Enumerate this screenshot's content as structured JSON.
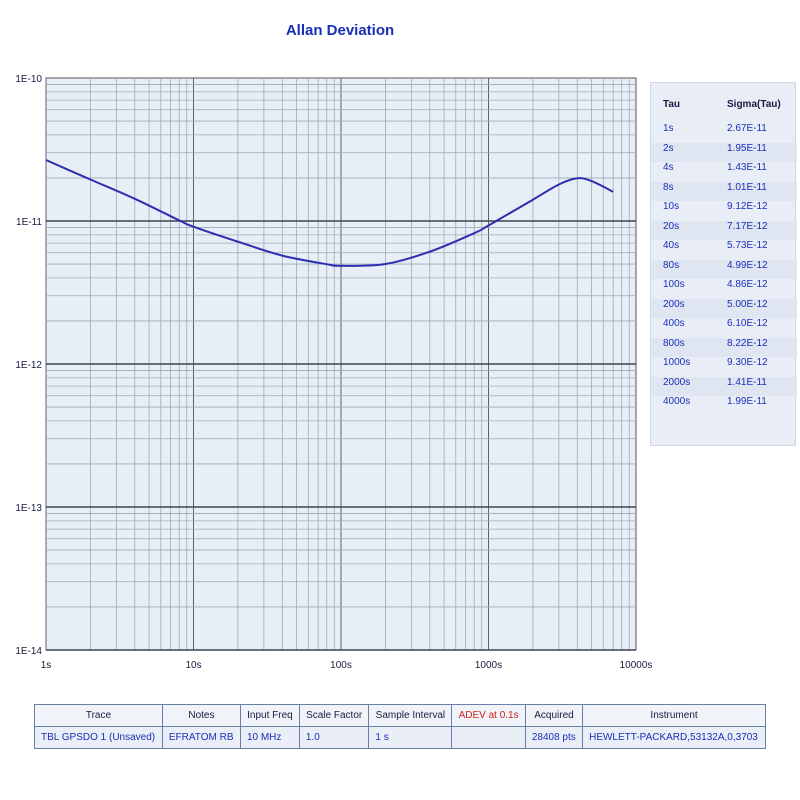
{
  "chart_data": {
    "type": "line",
    "title": "Allan Deviation",
    "x_scale": "log",
    "y_scale": "log",
    "xlim": [
      1,
      10000
    ],
    "ylim": [
      1e-14,
      1e-10
    ],
    "x_tick_labels": [
      "1s",
      "10s",
      "100s",
      "1000s",
      "10000s"
    ],
    "y_tick_labels": [
      "1E-10",
      "1E-11",
      "1E-12",
      "1E-13",
      "1E-14"
    ],
    "grid": true,
    "series": [
      {
        "color": "#2b2fb0",
        "x": [
          1,
          2,
          4,
          8,
          10,
          20,
          40,
          80,
          100,
          200,
          400,
          800,
          1000,
          2000,
          3000,
          4000,
          5000,
          7000
        ],
        "y": [
          2.67e-11,
          1.95e-11,
          1.43e-11,
          1.01e-11,
          9.12e-12,
          7.17e-12,
          5.73e-12,
          4.99e-12,
          4.86e-12,
          5e-12,
          6.1e-12,
          8.22e-12,
          9.3e-12,
          1.41e-11,
          1.8e-11,
          1.99e-11,
          1.9e-11,
          1.6e-11
        ]
      }
    ]
  },
  "tau_table": {
    "headers": [
      "Tau",
      "Sigma(Tau)"
    ],
    "rows": [
      [
        "1s",
        "2.67E-11"
      ],
      [
        "2s",
        "1.95E-11"
      ],
      [
        "4s",
        "1.43E-11"
      ],
      [
        "8s",
        "1.01E-11"
      ],
      [
        "10s",
        "9.12E-12"
      ],
      [
        "20s",
        "7.17E-12"
      ],
      [
        "40s",
        "5.73E-12"
      ],
      [
        "80s",
        "4.99E-12"
      ],
      [
        "100s",
        "4.86E-12"
      ],
      [
        "200s",
        "5.00E-12"
      ],
      [
        "400s",
        "6.10E-12"
      ],
      [
        "800s",
        "8.22E-12"
      ],
      [
        "1000s",
        "9.30E-12"
      ],
      [
        "2000s",
        "1.41E-11"
      ],
      [
        "4000s",
        "1.99E-11"
      ]
    ]
  },
  "trace_table": {
    "headers": [
      "Trace",
      "Notes",
      "Input Freq",
      "Scale Factor",
      "Sample Interval",
      "ADEV at 0.1s",
      "Acquired",
      "Instrument"
    ],
    "row": [
      "TBL GPSDO 1 (Unsaved)",
      "EFRATOM RB",
      "10 MHz",
      "1.0",
      "1 s",
      "",
      "28408 pts",
      "HEWLETT-PACKARD,53132A,0,3703"
    ]
  },
  "colors": {
    "title": "#1a2fb8",
    "plot_bg": "#e8eef6",
    "trace": "#2b2fb0",
    "adev_header": "#d22020"
  }
}
